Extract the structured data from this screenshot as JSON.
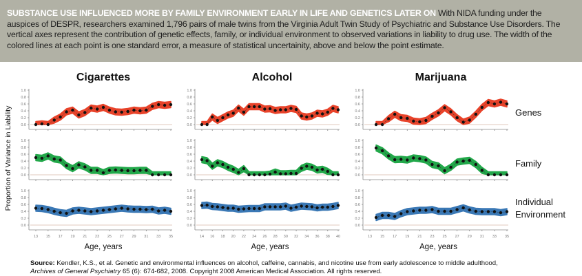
{
  "caption": {
    "headline": "SUBSTANCE USE INFLUENCED MORE BY FAMILY ENVIRONMENT EARLY IN LIFE AND GENETICS LATER ON",
    "body": " With NIDA funding under the auspices of DESPR, researchers examined 1,796 pairs of male twins from the Virginia Adult Twin Study of Psychiatric and Substance Use Disorders. The vertical axes represent the contribution of genetic effects, family, or individual environment to observed variations in liability to drug use. The width of the colored lines at each point is one standard error, a measure of statistical uncertainity, above and below the point estimate."
  },
  "source": {
    "label": "Source:",
    "text": " Kendler, K.S., et al. Genetic and environmental influences on alcohol, caffeine, cannabis, and nicotine use from early adolescence to middle adulthood,",
    "journal": "Archives of General Psychiatry",
    "rest": " 65 (6): 674-682, 2008. Copyright 2008 American Medical Association. All rights reserved."
  },
  "chart_data": {
    "type": "line",
    "ylabel": "Proportion of Variance in Liability",
    "xlabel": "Age, years",
    "row_labels": [
      "Genes",
      "Family",
      "Individual Environment"
    ],
    "colors": {
      "Genes": "#e8432a",
      "Family": "#22a84a",
      "Individual Environment": "#3a78b5"
    },
    "yticks": [
      "0.0",
      "0.2",
      "0.4",
      "0.6",
      "0.8",
      "1.0"
    ],
    "ylim": [
      0,
      1.0
    ],
    "panels": [
      {
        "title": "Cigarettes",
        "xticks": [
          13,
          15,
          17,
          19,
          21,
          23,
          25,
          27,
          29,
          31,
          33,
          35
        ],
        "xlim": [
          13,
          35
        ],
        "x_start": 13,
        "series": [
          {
            "name": "Genes",
            "values": [
              0,
              0.02,
              0,
              0.13,
              0.22,
              0.37,
              0.42,
              0.28,
              0.35,
              0.48,
              0.45,
              0.5,
              0.42,
              0.37,
              0.36,
              0.38,
              0.42,
              0.4,
              0.42,
              0.53,
              0.58,
              0.56,
              0.58
            ]
          },
          {
            "name": "Family",
            "values": [
              0.5,
              0.48,
              0.55,
              0.46,
              0.43,
              0.27,
              0.18,
              0.29,
              0.23,
              0.13,
              0.13,
              0.06,
              0.13,
              0.14,
              0.13,
              0.12,
              0.12,
              0.13,
              0.13,
              0,
              0,
              0,
              0
            ]
          },
          {
            "name": "Individual Environment",
            "values": [
              0.49,
              0.48,
              0.45,
              0.4,
              0.36,
              0.34,
              0.41,
              0.43,
              0.41,
              0.39,
              0.41,
              0.43,
              0.45,
              0.47,
              0.49,
              0.47,
              0.46,
              0.46,
              0.45,
              0.46,
              0.41,
              0.43,
              0.4
            ]
          }
        ]
      },
      {
        "title": "Alcohol",
        "xticks": [
          14,
          16,
          18,
          20,
          22,
          24,
          26,
          28,
          30,
          32,
          34,
          36,
          38,
          40
        ],
        "xlim": [
          14,
          40
        ],
        "x_start": 14,
        "series": [
          {
            "name": "Genes",
            "values": [
              0,
              0,
              0.22,
              0.12,
              0.2,
              0.28,
              0.33,
              0.48,
              0.36,
              0.52,
              0.52,
              0.52,
              0.45,
              0.46,
              0.41,
              0.43,
              0.43,
              0.47,
              0.44,
              0.25,
              0.22,
              0.25,
              0.33,
              0.31,
              0.36,
              0.47,
              0.43
            ]
          },
          {
            "name": "Family",
            "values": [
              0.44,
              0.41,
              0.25,
              0.35,
              0.3,
              0.22,
              0.16,
              0.07,
              0.18,
              0,
              0,
              0,
              0,
              0.02,
              0.08,
              0.03,
              0.03,
              0.04,
              0.04,
              0.19,
              0.25,
              0.22,
              0.14,
              0.16,
              0.1,
              0,
              0
            ]
          },
          {
            "name": "Individual Environment",
            "values": [
              0.57,
              0.58,
              0.54,
              0.53,
              0.51,
              0.49,
              0.49,
              0.46,
              0.47,
              0.48,
              0.48,
              0.48,
              0.53,
              0.53,
              0.53,
              0.53,
              0.55,
              0.49,
              0.52,
              0.55,
              0.54,
              0.53,
              0.5,
              0.52,
              0.52,
              0.54,
              0.57
            ]
          }
        ]
      },
      {
        "title": "Marijuana",
        "xticks": [
          13,
          15,
          17,
          19,
          21,
          23,
          25,
          27,
          29,
          31,
          33,
          35
        ],
        "xlim": [
          13,
          35
        ],
        "x_start": 14,
        "series": [
          {
            "name": "Genes",
            "values": [
              0,
              0,
              0.17,
              0.3,
              0.2,
              0.18,
              0.1,
              0.08,
              0.12,
              0.24,
              0.34,
              0.49,
              0.37,
              0.2,
              0.07,
              0.13,
              0.3,
              0.5,
              0.64,
              0.6,
              0.65,
              0.6
            ]
          },
          {
            "name": "Family",
            "values": [
              0.78,
              0.7,
              0.55,
              0.44,
              0.45,
              0.43,
              0.49,
              0.47,
              0.43,
              0.3,
              0.26,
              0.12,
              0.22,
              0.37,
              0.4,
              0.42,
              0.3,
              0.13,
              0,
              0,
              0,
              0
            ]
          },
          {
            "name": "Individual Environment",
            "values": [
              0.22,
              0.28,
              0.28,
              0.25,
              0.33,
              0.39,
              0.41,
              0.43,
              0.43,
              0.45,
              0.4,
              0.4,
              0.4,
              0.45,
              0.5,
              0.44,
              0.4,
              0.39,
              0.39,
              0.39,
              0.36,
              0.39
            ]
          }
        ]
      }
    ]
  }
}
